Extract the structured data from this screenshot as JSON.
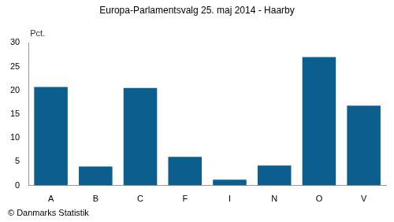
{
  "chart_data": {
    "type": "bar",
    "title": "Europa-Parlamentsvalg 25. maj 2014 - Haarby",
    "y_label": "Pct.",
    "source": "© Danmarks Statistik",
    "categories": [
      "A",
      "B",
      "C",
      "F",
      "I",
      "N",
      "O",
      "V"
    ],
    "values": [
      20.7,
      4.0,
      20.5,
      6.0,
      1.2,
      4.2,
      27.0,
      16.8
    ],
    "color": "#0b5e8e",
    "ylim": [
      0,
      30
    ],
    "yticks": [
      0,
      5,
      10,
      15,
      20,
      25,
      30
    ],
    "grid": false
  }
}
